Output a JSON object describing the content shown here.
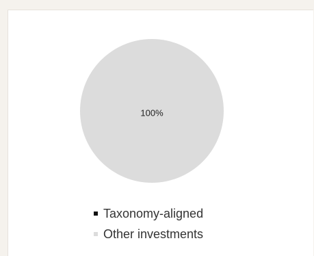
{
  "chart_data": {
    "type": "pie",
    "title": "",
    "slices": [
      {
        "name": "Taxonomy-aligned",
        "value": 0,
        "color": "#111111"
      },
      {
        "name": "Other investments",
        "value": 100,
        "color": "#dcdcdc"
      }
    ],
    "labels": [
      "100%"
    ],
    "legend_position": "bottom"
  }
}
